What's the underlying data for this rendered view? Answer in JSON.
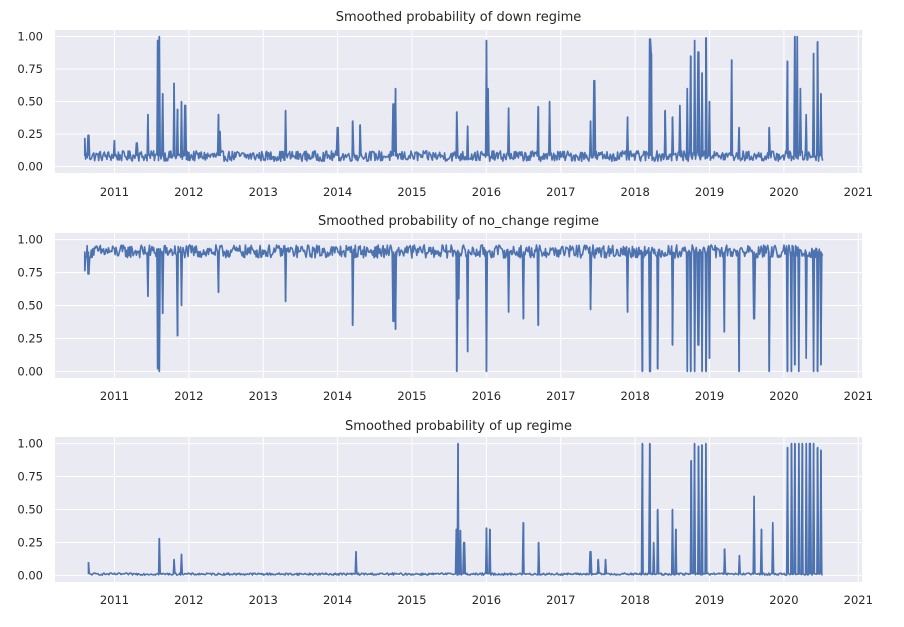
{
  "figure": {
    "background": "#ffffff",
    "axes_facecolor": "#eaeaf2",
    "grid_color": "#ffffff",
    "line_color": "#4c72b0"
  },
  "chart_data": [
    {
      "type": "line",
      "title": "Smoothed probability of down regime",
      "xlabel": "",
      "ylabel": "",
      "xlim": [
        2010.2,
        2021.05
      ],
      "ylim": [
        -0.05,
        1.05
      ],
      "yticks": [
        "0.00",
        "0.25",
        "0.50",
        "0.75",
        "1.00"
      ],
      "ytick_values": [
        0,
        0.25,
        0.5,
        0.75,
        1.0
      ],
      "xticks": [
        "2011",
        "2012",
        "2013",
        "2014",
        "2015",
        "2016",
        "2017",
        "2018",
        "2019",
        "2020",
        "2021"
      ],
      "xtick_values": [
        2011,
        2012,
        2013,
        2014,
        2015,
        2016,
        2017,
        2018,
        2019,
        2020,
        2021
      ],
      "series": [
        {
          "name": "down",
          "baseline": 0.08,
          "noise": 0.04,
          "x": [
            2010.6,
            2010.65,
            2011.0,
            2011.3,
            2011.45,
            2011.58,
            2011.6,
            2011.65,
            2011.8,
            2011.85,
            2011.9,
            2011.95,
            2012.4,
            2012.42,
            2013.3,
            2014.0,
            2014.2,
            2014.3,
            2014.75,
            2014.78,
            2015.6,
            2015.75,
            2016.0,
            2016.02,
            2016.3,
            2016.7,
            2016.85,
            2017.4,
            2017.45,
            2017.9,
            2018.2,
            2018.22,
            2018.4,
            2018.5,
            2018.6,
            2018.7,
            2018.75,
            2018.8,
            2018.85,
            2018.9,
            2018.95,
            2019.0,
            2019.3,
            2019.4,
            2019.8,
            2020.05,
            2020.15,
            2020.18,
            2020.22,
            2020.3,
            2020.4,
            2020.45,
            2020.5
          ],
          "y": [
            0.22,
            0.24,
            0.2,
            0.18,
            0.4,
            0.97,
            1.0,
            0.56,
            0.64,
            0.44,
            0.5,
            0.47,
            0.4,
            0.27,
            0.43,
            0.3,
            0.35,
            0.32,
            0.48,
            0.6,
            0.42,
            0.31,
            0.97,
            0.6,
            0.45,
            0.46,
            0.5,
            0.35,
            0.66,
            0.38,
            0.98,
            0.87,
            0.43,
            0.38,
            0.47,
            0.6,
            0.85,
            0.97,
            0.88,
            0.72,
            0.99,
            0.5,
            0.82,
            0.3,
            0.3,
            0.81,
            1.0,
            1.0,
            0.6,
            0.4,
            0.87,
            0.96,
            0.56
          ]
        }
      ]
    },
    {
      "type": "line",
      "title": "Smoothed probability of no_change regime",
      "xlabel": "",
      "ylabel": "",
      "xlim": [
        2010.2,
        2021.05
      ],
      "ylim": [
        -0.05,
        1.05
      ],
      "yticks": [
        "0.00",
        "0.25",
        "0.50",
        "0.75",
        "1.00"
      ],
      "ytick_values": [
        0,
        0.25,
        0.5,
        0.75,
        1.0
      ],
      "xticks": [
        "2011",
        "2012",
        "2013",
        "2014",
        "2015",
        "2016",
        "2017",
        "2018",
        "2019",
        "2020",
        "2021"
      ],
      "xtick_values": [
        2011,
        2012,
        2013,
        2014,
        2015,
        2016,
        2017,
        2018,
        2019,
        2020,
        2021
      ],
      "series": [
        {
          "name": "no_change",
          "baseline": 0.91,
          "noise": 0.05,
          "x": [
            2010.6,
            2010.65,
            2011.45,
            2011.58,
            2011.6,
            2011.65,
            2011.85,
            2011.9,
            2012.4,
            2013.3,
            2014.2,
            2014.75,
            2014.78,
            2015.6,
            2015.63,
            2015.75,
            2016.0,
            2016.3,
            2016.5,
            2016.7,
            2017.4,
            2017.9,
            2018.1,
            2018.2,
            2018.3,
            2018.5,
            2018.7,
            2018.75,
            2018.8,
            2018.85,
            2018.9,
            2018.95,
            2019.0,
            2019.2,
            2019.4,
            2019.6,
            2019.8,
            2020.05,
            2020.1,
            2020.15,
            2020.2,
            2020.3,
            2020.4,
            2020.45,
            2020.5
          ],
          "y": [
            0.76,
            0.74,
            0.57,
            0.02,
            0.0,
            0.44,
            0.27,
            0.5,
            0.6,
            0.53,
            0.35,
            0.38,
            0.32,
            0.0,
            0.55,
            0.15,
            0.0,
            0.45,
            0.4,
            0.35,
            0.47,
            0.45,
            0.0,
            0.0,
            0.02,
            0.2,
            0.0,
            0.0,
            0.0,
            0.2,
            0.0,
            0.0,
            0.1,
            0.3,
            0.0,
            0.4,
            0.0,
            0.0,
            0.0,
            0.05,
            0.0,
            0.1,
            0.0,
            0.0,
            0.05
          ]
        }
      ]
    },
    {
      "type": "line",
      "title": "Smoothed probability of up regime",
      "xlabel": "",
      "ylabel": "",
      "xlim": [
        2010.2,
        2021.05
      ],
      "ylim": [
        -0.05,
        1.05
      ],
      "yticks": [
        "0.00",
        "0.25",
        "0.50",
        "0.75",
        "1.00"
      ],
      "ytick_values": [
        0,
        0.25,
        0.5,
        0.75,
        1.0
      ],
      "xticks": [
        "2011",
        "2012",
        "2013",
        "2014",
        "2015",
        "2016",
        "2017",
        "2018",
        "2019",
        "2020",
        "2021"
      ],
      "xtick_values": [
        2011,
        2012,
        2013,
        2014,
        2015,
        2016,
        2017,
        2018,
        2019,
        2020,
        2021
      ],
      "series": [
        {
          "name": "up",
          "baseline": 0.01,
          "noise": 0.008,
          "x": [
            2010.65,
            2011.6,
            2011.8,
            2011.9,
            2014.25,
            2015.6,
            2015.62,
            2015.65,
            2015.7,
            2016.0,
            2016.05,
            2016.5,
            2016.7,
            2017.4,
            2017.5,
            2017.6,
            2018.1,
            2018.2,
            2018.25,
            2018.3,
            2018.5,
            2018.55,
            2018.75,
            2018.8,
            2018.85,
            2018.9,
            2018.95,
            2019.2,
            2019.4,
            2019.6,
            2019.7,
            2019.85,
            2020.05,
            2020.1,
            2020.15,
            2020.2,
            2020.25,
            2020.3,
            2020.35,
            2020.4,
            2020.45,
            2020.5
          ],
          "y": [
            0.1,
            0.28,
            0.12,
            0.16,
            0.18,
            0.35,
            1.0,
            0.34,
            0.25,
            0.36,
            0.35,
            0.4,
            0.25,
            0.18,
            0.12,
            0.12,
            1.0,
            1.0,
            0.25,
            0.5,
            0.5,
            0.35,
            0.87,
            1.0,
            0.98,
            0.99,
            1.0,
            0.2,
            0.15,
            0.6,
            0.35,
            0.4,
            0.97,
            1.0,
            1.0,
            1.0,
            1.0,
            1.0,
            1.0,
            1.0,
            0.97,
            0.95
          ]
        }
      ]
    }
  ]
}
